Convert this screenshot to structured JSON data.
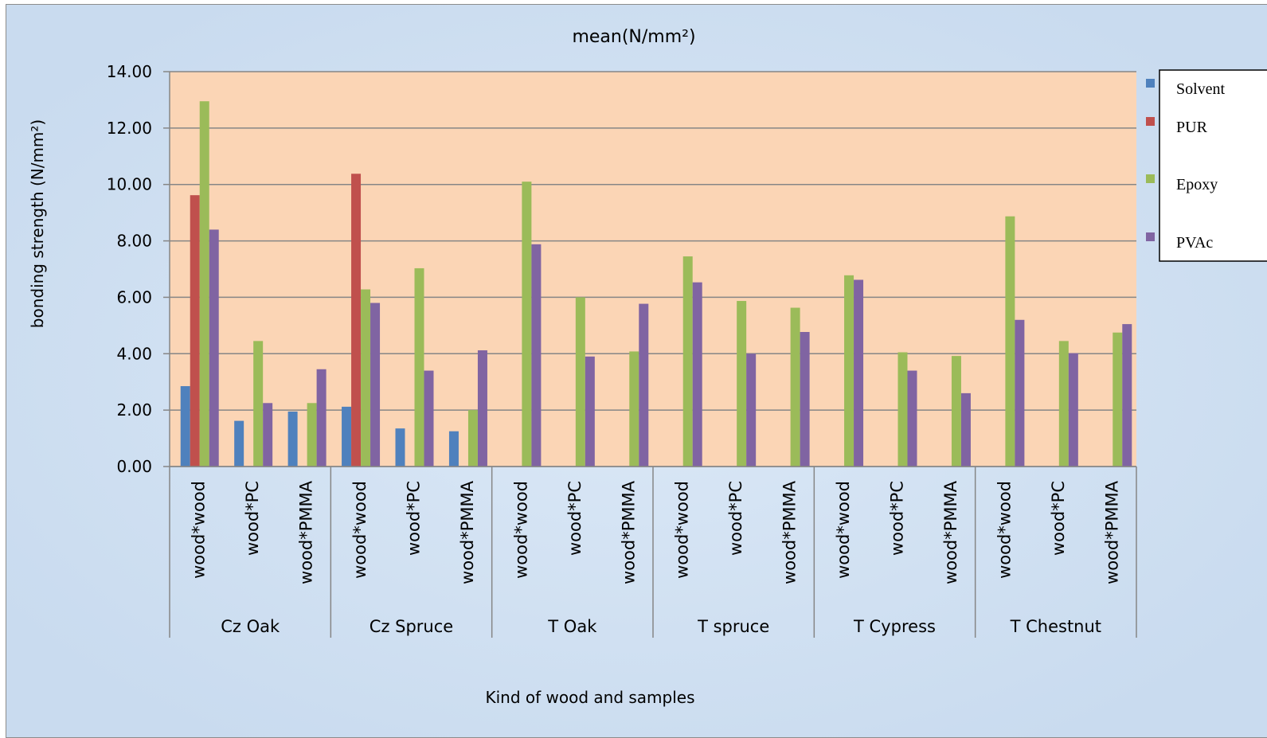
{
  "chart_data": {
    "type": "bar",
    "title": "mean(N/mm²)",
    "xlabel": "Kind of wood and samples",
    "ylabel": "bonding strength (N/mm²)",
    "ylim": [
      0,
      14
    ],
    "yticks": [
      "0.00",
      "2.00",
      "4.00",
      "6.00",
      "8.00",
      "10.00",
      "12.00",
      "14.00"
    ],
    "grid": true,
    "legend_position": "right",
    "groups": [
      "Cz Oak",
      "Cz Spruce",
      "T Oak",
      "T spruce",
      "T Cypress",
      "T Chestnut"
    ],
    "subcategories": [
      "wood*wood",
      "wood*PC",
      "wood*PMMA"
    ],
    "categories": [
      "Cz Oak wood*wood",
      "Cz Oak wood*PC",
      "Cz Oak wood*PMMA",
      "Cz Spruce wood*wood",
      "Cz Spruce wood*PC",
      "Cz Spruce wood*PMMA",
      "T Oak wood*wood",
      "T Oak wood*PC",
      "T Oak wood*PMMA",
      "T spruce wood*wood",
      "T spruce wood*PC",
      "T spruce wood*PMMA",
      "T Cypress wood*wood",
      "T Cypress wood*PC",
      "T Cypress wood*PMMA",
      "T Chestnut wood*wood",
      "T Chestnut wood*PC",
      "T Chestnut wood*PMMA"
    ],
    "series": [
      {
        "name": "Solvent",
        "color": "#4f81bd",
        "values": [
          2.85,
          1.62,
          1.95,
          2.12,
          1.35,
          1.25,
          0,
          0,
          0,
          0,
          0,
          0,
          0,
          0,
          0,
          0,
          0,
          0
        ]
      },
      {
        "name": "PUR",
        "color": "#c0504d",
        "values": [
          9.62,
          0,
          0,
          10.38,
          0,
          0,
          0,
          0,
          0,
          0,
          0,
          0,
          0,
          0,
          0,
          0,
          0,
          0
        ]
      },
      {
        "name": "Epoxy",
        "color": "#9bbb59",
        "values": [
          12.95,
          4.45,
          2.25,
          6.28,
          7.03,
          2.0,
          10.1,
          6.0,
          4.08,
          7.45,
          5.87,
          5.63,
          6.78,
          4.05,
          3.92,
          8.87,
          4.45,
          4.75
        ]
      },
      {
        "name": "PVAc",
        "color": "#8064a2",
        "values": [
          8.4,
          2.25,
          3.45,
          5.8,
          3.4,
          4.12,
          7.88,
          3.9,
          5.77,
          6.53,
          4.0,
          4.77,
          6.62,
          3.4,
          2.6,
          5.2,
          4.02,
          5.05
        ]
      }
    ],
    "plot_background": "#fbd5b5",
    "gridline_color": "#868686"
  }
}
